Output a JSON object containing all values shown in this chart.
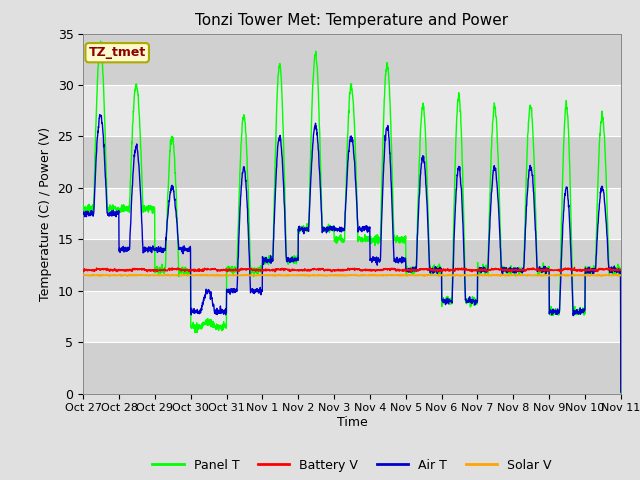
{
  "title": "Tonzi Tower Met: Temperature and Power",
  "xlabel": "Time",
  "ylabel": "Temperature (C) / Power (V)",
  "annotation_text": "TZ_tmet",
  "annotation_bg": "#FFFACD",
  "annotation_border": "#AAAA00",
  "annotation_text_color": "#8B0000",
  "ylim": [
    0,
    35
  ],
  "yticks": [
    0,
    5,
    10,
    15,
    20,
    25,
    30,
    35
  ],
  "xtick_labels": [
    "Oct 27",
    "Oct 28",
    "Oct 29",
    "Oct 30",
    "Oct 31",
    "Nov 1",
    "Nov 2",
    "Nov 3",
    "Nov 4",
    "Nov 5",
    "Nov 6",
    "Nov 7",
    "Nov 8",
    "Nov 9",
    "Nov 10",
    "Nov 11"
  ],
  "xtick_positions": [
    0,
    24,
    48,
    72,
    96,
    120,
    144,
    168,
    192,
    216,
    240,
    264,
    288,
    312,
    336,
    360
  ],
  "fig_bg_color": "#E0E0E0",
  "plot_bg_color": "#D8D8D8",
  "band_light_color": "#E8E8E8",
  "band_dark_color": "#D0D0D0",
  "grid_color": "#FFFFFF",
  "colors": {
    "panel_t": "#00FF00",
    "battery_v": "#FF0000",
    "air_t": "#0000CD",
    "solar_v": "#FFA500"
  },
  "panel_t_day_peaks": [
    34,
    30,
    25,
    7,
    27,
    32,
    33,
    30,
    32,
    28,
    29,
    28,
    28,
    28,
    27
  ],
  "panel_t_night_min": [
    18,
    18,
    12,
    6.5,
    12,
    13,
    16,
    15,
    15,
    12,
    9,
    12,
    12,
    8,
    12
  ],
  "air_t_day_peaks": [
    27,
    24,
    20,
    10,
    22,
    25,
    26,
    25,
    26,
    23,
    22,
    22,
    22,
    20,
    20
  ],
  "air_t_night_min": [
    17.5,
    14,
    14,
    8,
    10,
    13,
    16,
    16,
    13,
    12,
    9,
    12,
    12,
    8,
    12
  ],
  "battery_v_base": 12.0,
  "solar_v_base": 11.5,
  "n_days": 15,
  "n_hours": 360
}
